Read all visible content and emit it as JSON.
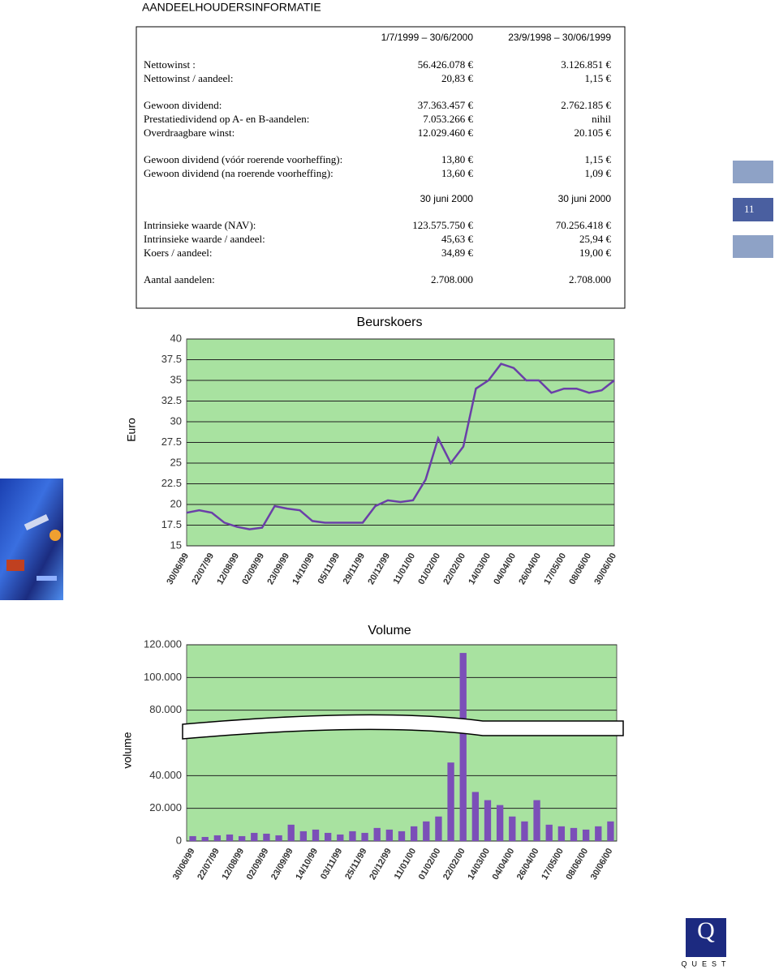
{
  "title": "AANDEELHOUDERSINFORMATIE",
  "page_number": "11",
  "logo": "QUEST",
  "table": {
    "header": [
      "1/7/1999 – 30/6/2000",
      "23/9/1998 – 30/06/1999"
    ],
    "groups": [
      [
        [
          "Nettowinst :",
          "56.426.078 €",
          "3.126.851 €"
        ],
        [
          "Nettowinst / aandeel:",
          "20,83 €",
          "1,15 €"
        ]
      ],
      [
        [
          "Gewoon dividend:",
          "37.363.457 €",
          "2.762.185 €"
        ],
        [
          "Prestatiedividend op A- en B-aandelen:",
          "7.053.266 €",
          "nihil"
        ],
        [
          "Overdraagbare winst:",
          "12.029.460 €",
          "20.105 €"
        ]
      ],
      [
        [
          "Gewoon dividend (vóór roerende voorheffing):",
          "13,80 €",
          "1,15 €"
        ],
        [
          "Gewoon dividend (na roerende voorheffing):",
          "13,60 €",
          "1,09 €"
        ]
      ]
    ],
    "header2": [
      "30 juni 2000",
      "30 juni 2000"
    ],
    "groups2": [
      [
        [
          "Intrinsieke waarde (NAV):",
          "123.575.750 €",
          "70.256.418 €"
        ],
        [
          "Intrinsieke waarde / aandeel:",
          "45,63 €",
          "25,94 €"
        ],
        [
          "Koers / aandeel:",
          "34,89 €",
          "19,00 €"
        ]
      ],
      [
        [
          "Aantal aandelen:",
          "2.708.000",
          "2.708.000"
        ]
      ]
    ]
  },
  "chart_data": [
    {
      "type": "line",
      "title": "Beurskoers",
      "y_label": "Euro",
      "color": "#6a3fa8",
      "background": "#a8e2a0",
      "grid": true,
      "categories": [
        "30/06/99",
        null,
        "22/07/99",
        null,
        "12/08/99",
        null,
        "02/09/99",
        null,
        "23/09/99",
        null,
        "14/10/99",
        null,
        "05/11/99",
        null,
        "29/11/99",
        null,
        "20/12/99",
        null,
        "11/01/00",
        null,
        "01/02/00",
        null,
        "22/02/00",
        null,
        "14/03/00",
        null,
        "04/04/00",
        null,
        "26/04/00",
        null,
        "17/05/00",
        null,
        "08/06/00",
        null,
        "30/06/00"
      ],
      "values": [
        19,
        19.3,
        19,
        17.8,
        17.3,
        17,
        17.2,
        19.8,
        19.5,
        19.3,
        18,
        17.8,
        17.8,
        17.8,
        17.8,
        19.8,
        20.5,
        20.3,
        20.5,
        23,
        28,
        25,
        27,
        34,
        35,
        37,
        36.5,
        35,
        35,
        33.5,
        34,
        34,
        33.5,
        33.8,
        35
      ],
      "ylim": [
        15,
        40
      ],
      "yticks": [
        15,
        17.5,
        20,
        22.5,
        25,
        27.5,
        30,
        32.5,
        35,
        37.5,
        40
      ]
    },
    {
      "type": "bar",
      "title": "Volume",
      "y_label": "volume",
      "color": "#7b4fb8",
      "background": "#a8e2a0",
      "grid": true,
      "categories": [
        "30/06/99",
        null,
        "22/07/99",
        null,
        "12/08/99",
        null,
        "02/09/99",
        null,
        "23/09/99",
        null,
        "14/10/99",
        null,
        "03/11/99",
        null,
        "25/11/99",
        null,
        "20/12/99",
        null,
        "11/01/00",
        null,
        "01/02/00",
        null,
        "22/02/00",
        null,
        "14/03/00",
        null,
        "04/04/00",
        null,
        "26/04/00",
        null,
        "17/05/00",
        null,
        "08/06/00",
        null,
        "30/06/00"
      ],
      "values": [
        3000,
        2500,
        3500,
        4000,
        3000,
        5000,
        4500,
        3500,
        10000,
        6000,
        7000,
        5000,
        4000,
        6000,
        5000,
        8000,
        7000,
        6000,
        9000,
        12000,
        15000,
        48000,
        115000,
        30000,
        25000,
        22000,
        15000,
        12000,
        25000,
        10000,
        9000,
        8000,
        7000,
        9000,
        12000
      ],
      "ylim": [
        0,
        120000
      ],
      "yticks": [
        0,
        {
          "value": 20000,
          "label": "20.000"
        },
        {
          "value": 40000,
          "label": "40.000"
        },
        {
          "value": 80000,
          "label": "80.000"
        },
        {
          "value": 100000,
          "label": "100.000"
        },
        {
          "value": 120000,
          "label": "120.000"
        }
      ]
    }
  ]
}
